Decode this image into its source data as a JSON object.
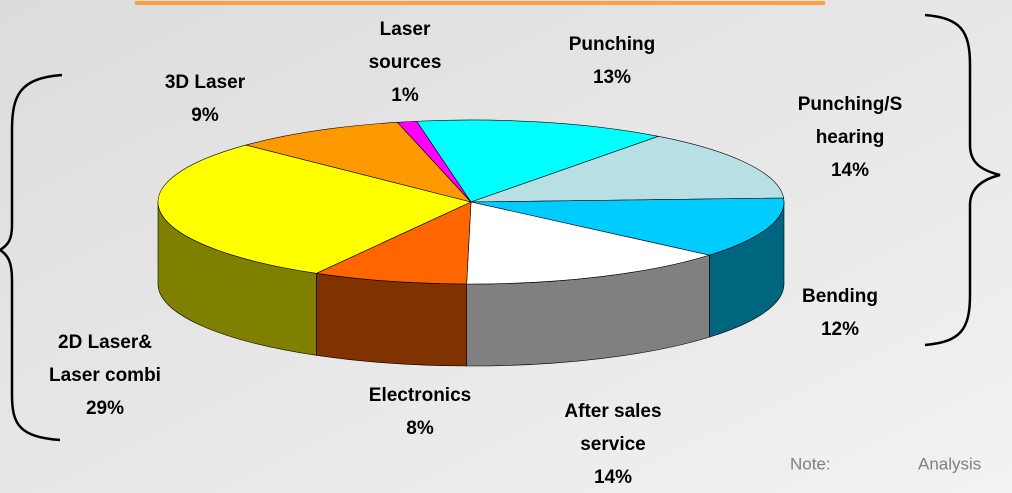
{
  "chart_data": {
    "type": "pie3d",
    "categories": [
      "Punching",
      "Punching/S\nhearing",
      "Bending",
      "After sales\nservice",
      "Electronics",
      "2D Laser&\nLaser combi",
      "3D Laser",
      "Laser\nsources"
    ],
    "values": [
      13,
      14,
      12,
      14,
      8,
      29,
      9,
      1
    ],
    "value_labels": [
      "13%",
      "14%",
      "12%",
      "14%",
      "8%",
      "29%",
      "9%",
      "1%"
    ],
    "colors": [
      "#00ffff",
      "#b8dfe3",
      "#00ccff",
      "#ffffff",
      "#ff6600",
      "#ffff00",
      "#ff9900",
      "#ff00ff"
    ],
    "note": "Note:",
    "note_text": "Analysis"
  }
}
